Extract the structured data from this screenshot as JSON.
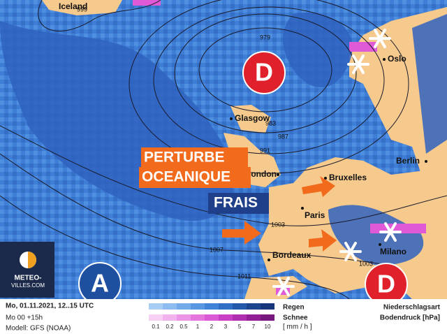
{
  "map": {
    "cities": [
      "Iceland",
      "Glasgow",
      "London",
      "Oslo",
      "Bruxelles",
      "Berlin",
      "Paris",
      "Bordeaux",
      "Milano"
    ],
    "isobar_labels": [
      "999",
      "979",
      "983",
      "987",
      "991",
      "1003",
      "1007",
      "1003",
      "1011"
    ],
    "centers": [
      "D",
      "A",
      "D"
    ],
    "annotations": [
      "PERTURBE",
      "OCEANIQUE",
      "FRAIS"
    ],
    "logo": [
      "METEO-",
      "VILLES.COM"
    ]
  },
  "footer": {
    "date": "Mo, 01.11.2021, 12..15 UTC",
    "run": "Mo 00 +15h",
    "model": "Modell: GFS (NOAA)",
    "legend": {
      "rain": "Regen",
      "snow": "Schnee",
      "scale": [
        0.1,
        0.2,
        0.5,
        1,
        2,
        3,
        5,
        7,
        10
      ],
      "unit": "[ mm / h ]"
    },
    "type_label": "Niederschlagsart",
    "pressure_label": "Bodendruck [hPa]"
  }
}
